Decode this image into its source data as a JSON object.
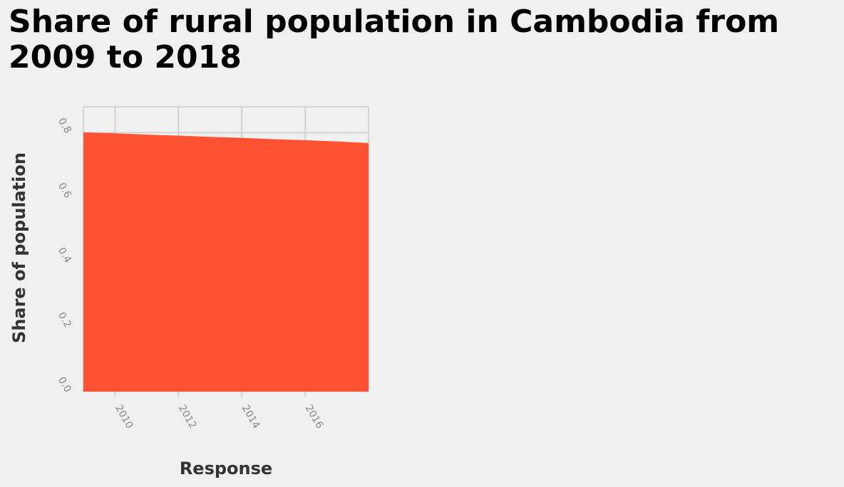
{
  "chart_data": {
    "type": "area",
    "title": "Share of rural population in Cambodia from 2009 to 2018",
    "xlabel": "Response",
    "ylabel": "Share of population",
    "x": [
      2009,
      2010,
      2011,
      2012,
      2013,
      2014,
      2015,
      2016,
      2017,
      2018
    ],
    "series": [
      {
        "values": [
          0.801,
          0.798,
          0.794,
          0.791,
          0.787,
          0.784,
          0.78,
          0.777,
          0.773,
          0.768
        ],
        "color": "#ff5232"
      }
    ],
    "xlim": [
      2009,
      2018
    ],
    "ylim": [
      0,
      0.88
    ],
    "x_ticks": [
      "2010",
      "2012",
      "2014",
      "2016"
    ],
    "x_tick_values": [
      2010,
      2012,
      2014,
      2016
    ],
    "y_ticks": [
      "0.0",
      "0.2",
      "0.4",
      "0.6",
      "0.8"
    ],
    "y_tick_values": [
      0,
      0.2,
      0.4,
      0.6,
      0.8
    ],
    "grid": true,
    "grid_color": "#cccccc",
    "background": "#f0f0f0"
  }
}
